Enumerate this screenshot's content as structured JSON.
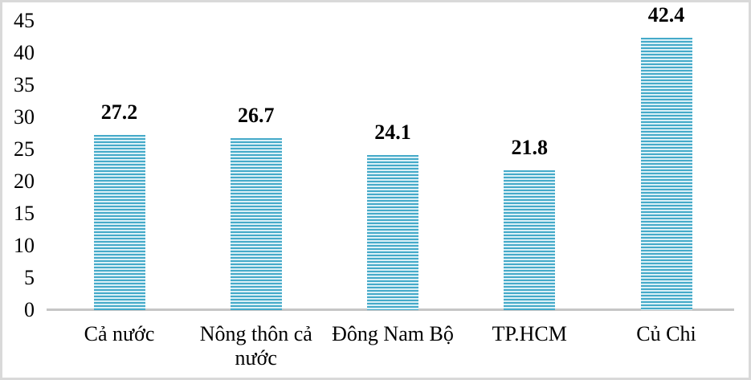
{
  "chart_data": {
    "type": "bar",
    "categories": [
      "Cả nước",
      "Nông thôn cả nước",
      "Đông Nam Bộ",
      "TP.HCM",
      "Củ Chi"
    ],
    "values": [
      27.2,
      26.7,
      24.1,
      21.8,
      42.4
    ],
    "value_labels": [
      "27.2",
      "26.7",
      "24.1",
      "21.8",
      "42.4"
    ],
    "title": "",
    "xlabel": "",
    "ylabel": "",
    "ylim": [
      0,
      45
    ],
    "yticks": [
      0,
      5,
      10,
      15,
      20,
      25,
      30,
      35,
      40,
      45
    ],
    "grid": "off",
    "legend": "none",
    "bar_labels_position": "above"
  },
  "colors": {
    "bar_stripe_dark": "#45aac9",
    "bar_stripe_light": "#dff2f8",
    "axis_line": "#c6c6c6",
    "frame_border": "#d9d9d9",
    "text": "#000000",
    "background": "#ffffff"
  }
}
